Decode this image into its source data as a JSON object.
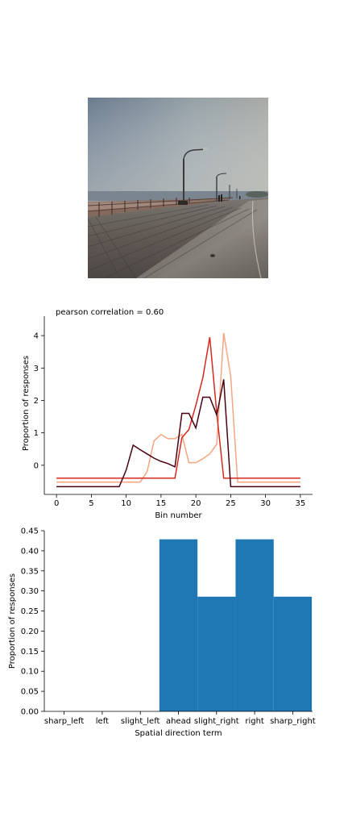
{
  "photo": {
    "subject": "boardwalk-with-street-lamps-photo"
  },
  "chart_data": [
    {
      "type": "line",
      "title": "pearson correlation = 0.60",
      "xlabel": "Bin number",
      "ylabel": "Proportion of responses",
      "xlim": [
        -1.75,
        36.75
      ],
      "ylim": [
        -0.9,
        4.6
      ],
      "xticks": [
        0,
        5,
        10,
        15,
        20,
        25,
        30,
        35
      ],
      "yticks": [
        0,
        1,
        2,
        3,
        4
      ],
      "series": [
        {
          "color": "#f4a582",
          "points": [
            [
              0,
              -0.52
            ],
            [
              12,
              -0.52
            ],
            [
              13,
              -0.2
            ],
            [
              14,
              0.75
            ],
            [
              15,
              0.95
            ],
            [
              16,
              0.82
            ],
            [
              17,
              0.82
            ],
            [
              18,
              0.95
            ],
            [
              19,
              0.08
            ],
            [
              20,
              0.08
            ],
            [
              21,
              0.2
            ],
            [
              22,
              0.35
            ],
            [
              23,
              0.65
            ],
            [
              24,
              4.08
            ],
            [
              25,
              2.75
            ],
            [
              26,
              -0.52
            ],
            [
              35,
              -0.52
            ]
          ]
        },
        {
          "color": "#d6281f",
          "points": [
            [
              0,
              -0.4
            ],
            [
              17,
              -0.4
            ],
            [
              18,
              0.85
            ],
            [
              19,
              1.1
            ],
            [
              20,
              1.85
            ],
            [
              21,
              2.7
            ],
            [
              22,
              3.95
            ],
            [
              23,
              1.6
            ],
            [
              24,
              -0.4
            ],
            [
              35,
              -0.4
            ]
          ]
        },
        {
          "color": "#4a0010",
          "points": [
            [
              0,
              -0.66
            ],
            [
              9,
              -0.66
            ],
            [
              10,
              -0.15
            ],
            [
              11,
              0.62
            ],
            [
              12,
              0.48
            ],
            [
              13,
              0.35
            ],
            [
              14,
              0.22
            ],
            [
              15,
              0.12
            ],
            [
              16,
              0.05
            ],
            [
              17,
              -0.05
            ],
            [
              18,
              1.6
            ],
            [
              19,
              1.6
            ],
            [
              20,
              1.15
            ],
            [
              21,
              2.1
            ],
            [
              22,
              2.1
            ],
            [
              23,
              1.55
            ],
            [
              24,
              2.65
            ],
            [
              25,
              -0.66
            ],
            [
              35,
              -0.66
            ]
          ]
        }
      ]
    },
    {
      "type": "bar",
      "xlabel": "Spatial direction term",
      "ylabel": "Proportion of responses",
      "categories": [
        "sharp_left",
        "left",
        "slight_left",
        "ahead",
        "slight_right",
        "right",
        "sharp_right"
      ],
      "values": [
        0,
        0,
        0,
        0.4286,
        0.2857,
        0.4286,
        0.2857
      ],
      "ylim": [
        0,
        0.45
      ],
      "yticks": [
        "0.00",
        "0.05",
        "0.10",
        "0.15",
        "0.20",
        "0.25",
        "0.30",
        "0.35",
        "0.40",
        "0.45"
      ],
      "bar_color": "#1f77b4"
    }
  ]
}
